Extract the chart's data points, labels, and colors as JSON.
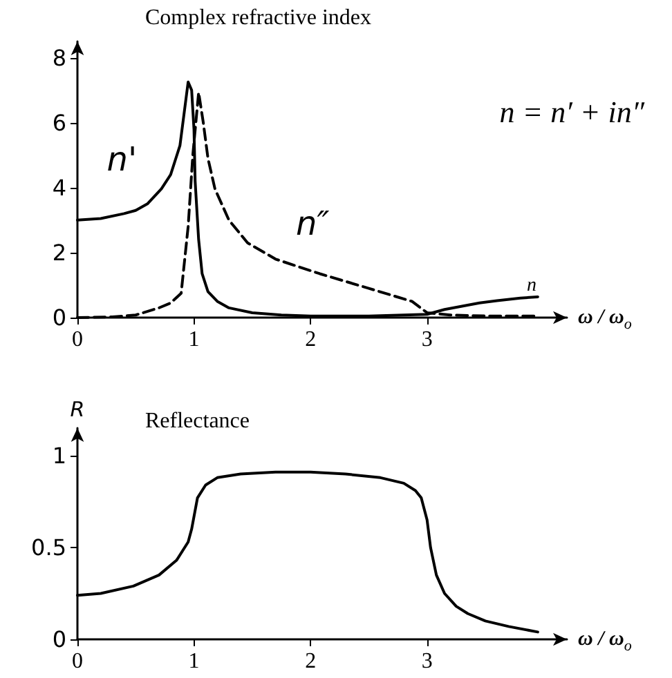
{
  "chart_data": [
    {
      "type": "line",
      "title": "Complex refractive index",
      "xlabel": "ω / ω$_{o}$",
      "xlim": [
        0,
        4.2
      ],
      "xticks": [
        0,
        1,
        2,
        3
      ],
      "ylim": [
        0,
        8.5
      ],
      "yticks": [
        0,
        2,
        4,
        6,
        8
      ],
      "grid": false,
      "marker": "none",
      "legend": false,
      "annotations": [
        "n = n′ + in″",
        "n"
      ],
      "series": [
        {
          "name": "n'",
          "color": "#000000",
          "line_style": "solid",
          "x": [
            0,
            0.2,
            0.4,
            0.5,
            0.6,
            0.72,
            0.8,
            0.88,
            0.95,
            0.98,
            1.0,
            1.01,
            1.04,
            1.07,
            1.12,
            1.2,
            1.3,
            1.5,
            1.75,
            2,
            2.5,
            3,
            3.15,
            3.3,
            3.45,
            3.6,
            3.8,
            3.95
          ],
          "values": [
            3,
            3.05,
            3.2,
            3.3,
            3.5,
            3.96,
            4.4,
            5.3,
            7.25,
            7.0,
            5.8,
            4.2,
            2.4,
            1.35,
            0.8,
            0.5,
            0.3,
            0.15,
            0.08,
            0.05,
            0.05,
            0.1,
            0.25,
            0.35,
            0.45,
            0.52,
            0.6,
            0.64
          ]
        },
        {
          "name": "n″",
          "color": "#000000",
          "line_style": "dashed",
          "x": [
            0,
            0.3,
            0.5,
            0.7,
            0.8,
            0.89,
            0.95,
            0.99,
            1.04,
            1.08,
            1.12,
            1.18,
            1.3,
            1.46,
            1.7,
            2.08,
            2.5,
            2.87,
            3,
            3.2,
            3.5,
            3.95
          ],
          "values": [
            0,
            0.02,
            0.08,
            0.3,
            0.45,
            0.75,
            2.8,
            5.0,
            6.93,
            6.0,
            4.9,
            3.96,
            3.0,
            2.3,
            1.8,
            1.35,
            0.9,
            0.5,
            0.15,
            0.08,
            0.05,
            0.05
          ]
        }
      ]
    },
    {
      "type": "line",
      "title": "Reflectance",
      "xlabel": "ω / ω$_{o}$",
      "ylabel": "R",
      "xlim": [
        0,
        4.2
      ],
      "xticks": [
        0,
        1,
        2,
        3
      ],
      "ylim": [
        0,
        1.15
      ],
      "yticks": [
        0,
        0.5,
        1
      ],
      "grid": false,
      "marker": "none",
      "legend": false,
      "series": [
        {
          "color": "#000000",
          "line_style": "solid",
          "x": [
            0,
            0.2,
            0.48,
            0.7,
            0.85,
            0.95,
            0.98,
            1.03,
            1.1,
            1.2,
            1.4,
            1.7,
            2,
            2.3,
            2.6,
            2.8,
            2.9,
            2.95,
            3.0,
            3.03,
            3.08,
            3.15,
            3.25,
            3.35,
            3.5,
            3.7,
            3.95
          ],
          "values": [
            0.24,
            0.25,
            0.29,
            0.35,
            0.43,
            0.53,
            0.6,
            0.77,
            0.84,
            0.88,
            0.9,
            0.91,
            0.91,
            0.9,
            0.88,
            0.85,
            0.81,
            0.77,
            0.65,
            0.5,
            0.35,
            0.25,
            0.18,
            0.14,
            0.1,
            0.07,
            0.04
          ]
        }
      ]
    }
  ]
}
